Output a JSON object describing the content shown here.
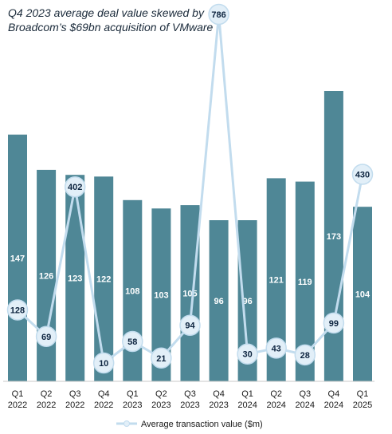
{
  "chart_data": {
    "type": "bar",
    "title": "Q4 2023 average deal value skewed by Broadcom’s $69bn acquisition of VMware",
    "title_lines": [
      "Q4 2023 average deal value skewed by",
      "Broadcom’s $69bn acquisition of VMware"
    ],
    "categories": [
      [
        "Q1",
        "2022"
      ],
      [
        "Q2",
        "2022"
      ],
      [
        "Q3",
        "2022"
      ],
      [
        "Q4",
        "2022"
      ],
      [
        "Q1",
        "2023"
      ],
      [
        "Q2",
        "2023"
      ],
      [
        "Q3",
        "2023"
      ],
      [
        "Q4",
        "2023"
      ],
      [
        "Q1",
        "2024"
      ],
      [
        "Q2",
        "2024"
      ],
      [
        "Q3",
        "2024"
      ],
      [
        "Q4",
        "2024"
      ],
      [
        "Q1",
        "2025"
      ]
    ],
    "series": [
      {
        "type": "bar",
        "values": [
          147,
          126,
          123,
          122,
          108,
          103,
          105,
          96,
          96,
          121,
          119,
          173,
          104
        ],
        "color": "#4f8796"
      },
      {
        "type": "line",
        "name": "Average transaction value ($m)",
        "values": [
          128,
          69,
          402,
          10,
          58,
          21,
          94,
          786,
          30,
          43,
          28,
          99,
          430
        ],
        "color": "#c2dcee",
        "marker_fill": "#e2eff8"
      }
    ],
    "legend": {
      "position": "bottom",
      "label": "Average transaction value ($m)"
    },
    "grid": false
  }
}
